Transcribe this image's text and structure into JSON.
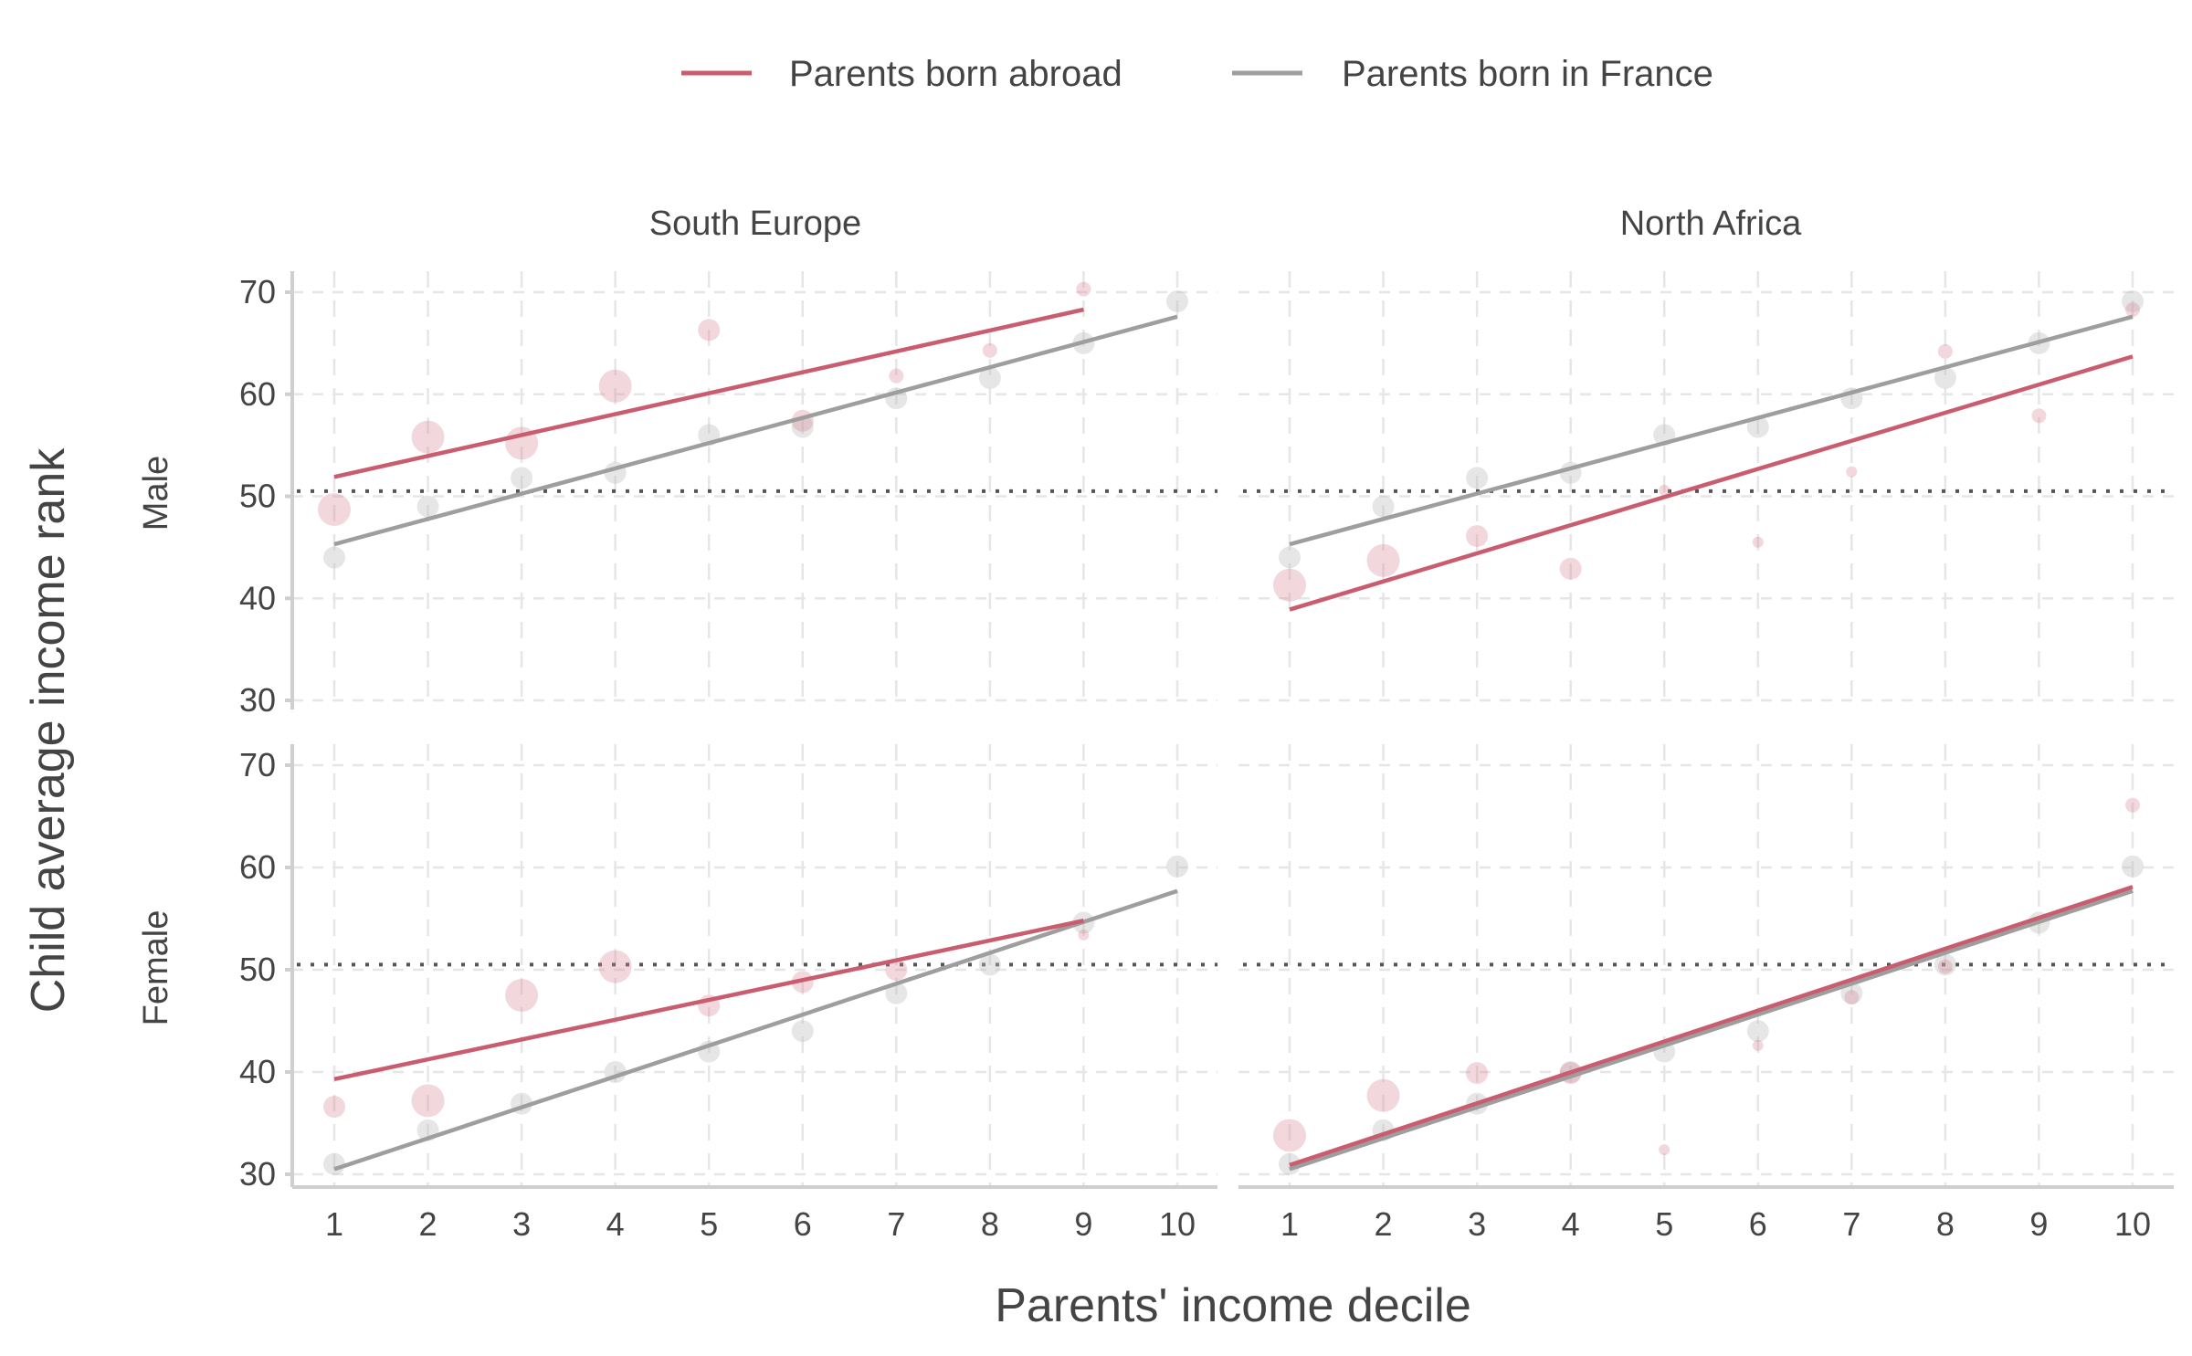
{
  "chart_data": {
    "type": "scatter",
    "title": "",
    "xlabel": "Parents' income decile",
    "ylabel": "Child average income rank",
    "xlim": [
      1,
      10
    ],
    "ylim": [
      30,
      70
    ],
    "x_ticks": [
      "1",
      "2",
      "3",
      "4",
      "5",
      "6",
      "7",
      "8",
      "9",
      "10"
    ],
    "y_ticks": [
      "30",
      "40",
      "50",
      "60",
      "70"
    ],
    "reference_line": 50.5,
    "legend": {
      "placement": "top-center",
      "entries": [
        {
          "label": "Parents born abroad",
          "color": "#c95c6e"
        },
        {
          "label": "Parents born in France",
          "color": "#9e9e9e"
        }
      ]
    },
    "columns": [
      "South Europe",
      "North Africa"
    ],
    "rows": [
      "Male",
      "Female"
    ],
    "panels": [
      {
        "row": "Male",
        "column": "South Europe",
        "series": [
          {
            "name": "Parents born abroad",
            "x": [
              1,
              2,
              3,
              4,
              5,
              6,
              7,
              8,
              9
            ],
            "y": [
              48.7,
              55.8,
              55.2,
              60.8,
              66.3,
              57.4,
              61.8,
              64.3,
              70.3
            ],
            "size": [
              4,
              4,
              4,
              4,
              3,
              3,
              2,
              2,
              2
            ],
            "fit": [
              [
                1,
                51.9
              ],
              [
                9,
                68.3
              ]
            ]
          },
          {
            "name": "Parents born in France",
            "x": [
              1,
              2,
              3,
              4,
              5,
              6,
              7,
              8,
              9,
              10
            ],
            "y": [
              44.0,
              49.0,
              51.8,
              52.3,
              56.0,
              56.8,
              59.6,
              61.6,
              65.0,
              69.1
            ],
            "size": [
              3,
              3,
              3,
              3,
              3,
              3,
              3,
              3,
              3,
              3
            ],
            "fit": [
              [
                1,
                45.3
              ],
              [
                10,
                67.6
              ]
            ]
          }
        ]
      },
      {
        "row": "Male",
        "column": "North Africa",
        "series": [
          {
            "name": "Parents born abroad",
            "x": [
              1,
              2,
              3,
              4,
              5,
              6,
              7,
              8,
              9,
              10
            ],
            "y": [
              41.3,
              43.7,
              46.1,
              42.9,
              50.6,
              45.5,
              52.4,
              64.2,
              57.9,
              68.3
            ],
            "size": [
              4,
              4,
              3,
              3,
              1,
              1,
              1,
              2,
              2,
              2
            ],
            "fit": [
              [
                1,
                38.9
              ],
              [
                10,
                63.7
              ]
            ]
          },
          {
            "name": "Parents born in France",
            "x": [
              1,
              2,
              3,
              4,
              5,
              6,
              7,
              8,
              9,
              10
            ],
            "y": [
              44.0,
              49.0,
              51.8,
              52.3,
              56.0,
              56.8,
              59.6,
              61.6,
              65.0,
              69.1
            ],
            "size": [
              3,
              3,
              3,
              3,
              3,
              3,
              3,
              3,
              3,
              3
            ],
            "fit": [
              [
                1,
                45.3
              ],
              [
                10,
                67.6
              ]
            ]
          }
        ]
      },
      {
        "row": "Female",
        "column": "South Europe",
        "series": [
          {
            "name": "Parents born abroad",
            "x": [
              1,
              2,
              3,
              4,
              5,
              6,
              7,
              9
            ],
            "y": [
              36.6,
              37.2,
              47.5,
              50.3,
              46.5,
              48.8,
              50.0,
              53.4
            ],
            "size": [
              3,
              4,
              4,
              4,
              3,
              3,
              3,
              1
            ],
            "fit": [
              [
                1,
                39.3
              ],
              [
                9,
                54.8
              ]
            ]
          },
          {
            "name": "Parents born in France",
            "x": [
              1,
              2,
              3,
              4,
              5,
              6,
              7,
              8,
              9,
              10
            ],
            "y": [
              31.0,
              34.3,
              36.9,
              40.0,
              42.0,
              44.0,
              47.7,
              50.5,
              54.6,
              60.1
            ],
            "size": [
              3,
              3,
              3,
              3,
              3,
              3,
              3,
              3,
              3,
              3
            ],
            "fit": [
              [
                1,
                30.5
              ],
              [
                10,
                57.7
              ]
            ]
          }
        ]
      },
      {
        "row": "Female",
        "column": "North Africa",
        "series": [
          {
            "name": "Parents born abroad",
            "x": [
              1,
              2,
              3,
              4,
              5,
              6,
              7,
              8,
              10
            ],
            "y": [
              33.8,
              37.7,
              39.9,
              39.9,
              32.4,
              42.6,
              47.3,
              50.3,
              66.1
            ],
            "size": [
              4,
              4,
              3,
              3,
              1,
              1,
              2,
              2,
              2
            ],
            "fit": [
              [
                1,
                30.9
              ],
              [
                10,
                58.1
              ]
            ]
          },
          {
            "name": "Parents born in France",
            "x": [
              1,
              2,
              3,
              4,
              5,
              6,
              7,
              8,
              9,
              10
            ],
            "y": [
              31.0,
              34.3,
              36.9,
              40.0,
              42.0,
              44.0,
              47.7,
              50.5,
              54.6,
              60.1
            ],
            "size": [
              3,
              3,
              3,
              3,
              3,
              3,
              3,
              3,
              3,
              3
            ],
            "fit": [
              [
                1,
                30.5
              ],
              [
                10,
                57.7
              ]
            ]
          }
        ]
      }
    ]
  }
}
